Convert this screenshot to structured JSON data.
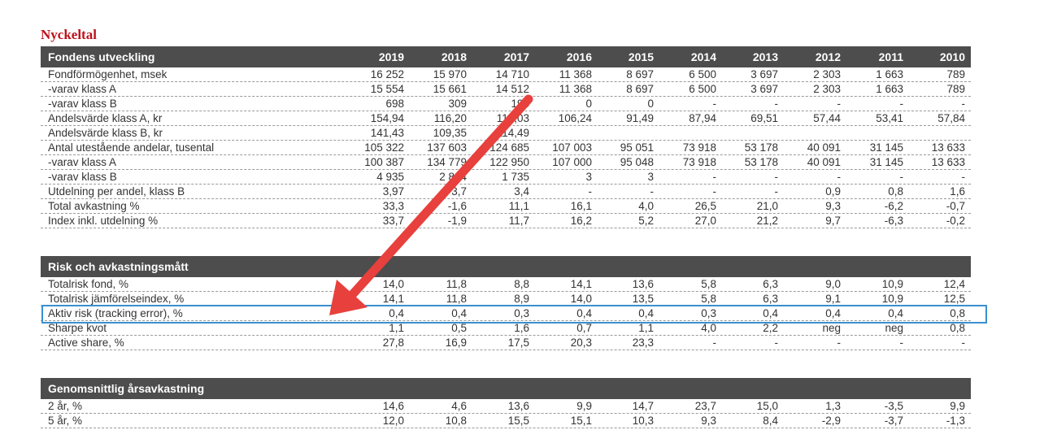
{
  "title": "Nyckeltal",
  "sections": [
    {
      "header": "Fondens utveckling",
      "years": [
        "2019",
        "2018",
        "2017",
        "2016",
        "2015",
        "2014",
        "2013",
        "2012",
        "2011",
        "2010"
      ],
      "rows": [
        {
          "label": "Fondförmögenhet, msek",
          "values": [
            "16 252",
            "15 970",
            "14 710",
            "11 368",
            "8 697",
            "6 500",
            "3 697",
            "2 303",
            "1 663",
            "789"
          ]
        },
        {
          "label": "-varav klass A",
          "values": [
            "15 554",
            "15 661",
            "14 512",
            "11 368",
            "8 697",
            "6 500",
            "3 697",
            "2 303",
            "1 663",
            "789"
          ]
        },
        {
          "label": "-varav klass B",
          "values": [
            "698",
            "309",
            "198",
            "0",
            "0",
            "-",
            "-",
            "-",
            "-",
            "-"
          ]
        },
        {
          "label": "Andelsvärde klass A, kr",
          "values": [
            "154,94",
            "116,20",
            "118,03",
            "106,24",
            "91,49",
            "87,94",
            "69,51",
            "57,44",
            "53,41",
            "57,84"
          ]
        },
        {
          "label": "Andelsvärde klass B, kr",
          "values": [
            "141,43",
            "109,35",
            "114,49",
            "",
            "",
            "",
            "",
            "",
            "",
            ""
          ]
        },
        {
          "label": "Antal utestående andelar, tusental",
          "values": [
            "105 322",
            "137 603",
            "124 685",
            "107 003",
            "95 051",
            "73 918",
            "53 178",
            "40 091",
            "31 145",
            "13 633"
          ]
        },
        {
          "label": "-varav klass A",
          "values": [
            "100 387",
            "134 779",
            "122 950",
            "107 000",
            "95 048",
            "73 918",
            "53 178",
            "40 091",
            "31 145",
            "13 633"
          ]
        },
        {
          "label": "-varav klass B",
          "values": [
            "4 935",
            "2 824",
            "1 735",
            "3",
            "3",
            "-",
            "-",
            "-",
            "-",
            "-"
          ]
        },
        {
          "label": "Utdelning per andel, klass B",
          "values": [
            "3,97",
            "3,7",
            "3,4",
            "-",
            "-",
            "-",
            "-",
            "0,9",
            "0,8",
            "1,6"
          ]
        },
        {
          "label": "Total avkastning %",
          "values": [
            "33,3",
            "-1,6",
            "11,1",
            "16,1",
            "4,0",
            "26,5",
            "21,0",
            "9,3",
            "-6,2",
            "-0,7"
          ]
        },
        {
          "label": "Index inkl. utdelning %",
          "values": [
            "33,7",
            "-1,9",
            "11,7",
            "16,2",
            "5,2",
            "27,0",
            "21,2",
            "9,7",
            "-6,3",
            "-0,2"
          ]
        }
      ]
    },
    {
      "header": "Risk och avkastningsmått",
      "rows": [
        {
          "label": "Totalrisk fond, %",
          "values": [
            "14,0",
            "11,8",
            "8,8",
            "14,1",
            "13,6",
            "5,8",
            "6,3",
            "9,0",
            "10,9",
            "12,4"
          ]
        },
        {
          "label": "Totalrisk jämförelseindex, %",
          "values": [
            "14,1",
            "11,8",
            "8,9",
            "14,0",
            "13,5",
            "5,8",
            "6,3",
            "9,1",
            "10,9",
            "12,5"
          ]
        },
        {
          "label": "Aktiv risk (tracking error), %",
          "values": [
            "0,4",
            "0,4",
            "0,3",
            "0,4",
            "0,4",
            "0,3",
            "0,4",
            "0,4",
            "0,4",
            "0,8"
          ]
        },
        {
          "label": "Sharpe kvot",
          "values": [
            "1,1",
            "0,5",
            "1,6",
            "0,7",
            "1,1",
            "4,0",
            "2,2",
            "neg",
            "neg",
            "0,8"
          ]
        },
        {
          "label": "Active share, %",
          "values": [
            "27,8",
            "16,9",
            "17,5",
            "20,3",
            "23,3",
            "-",
            "-",
            "-",
            "-",
            "-"
          ]
        }
      ]
    },
    {
      "header": "Genomsnittlig årsavkastning",
      "rows": [
        {
          "label": "2 år, %",
          "values": [
            "14,6",
            "4,6",
            "13,6",
            "9,9",
            "14,7",
            "23,7",
            "15,0",
            "1,3",
            "-3,5",
            "9,9"
          ]
        },
        {
          "label": "5 år, %",
          "values": [
            "12,0",
            "10,8",
            "15,5",
            "15,1",
            "10,3",
            "9,3",
            "8,4",
            "-2,9",
            "-3,7",
            "-1,3"
          ]
        }
      ]
    }
  ],
  "colors": {
    "title": "#c0111b",
    "header_bg": "#4d4d4d",
    "highlight": "#3b8fcf",
    "arrow": "#e8403c"
  }
}
